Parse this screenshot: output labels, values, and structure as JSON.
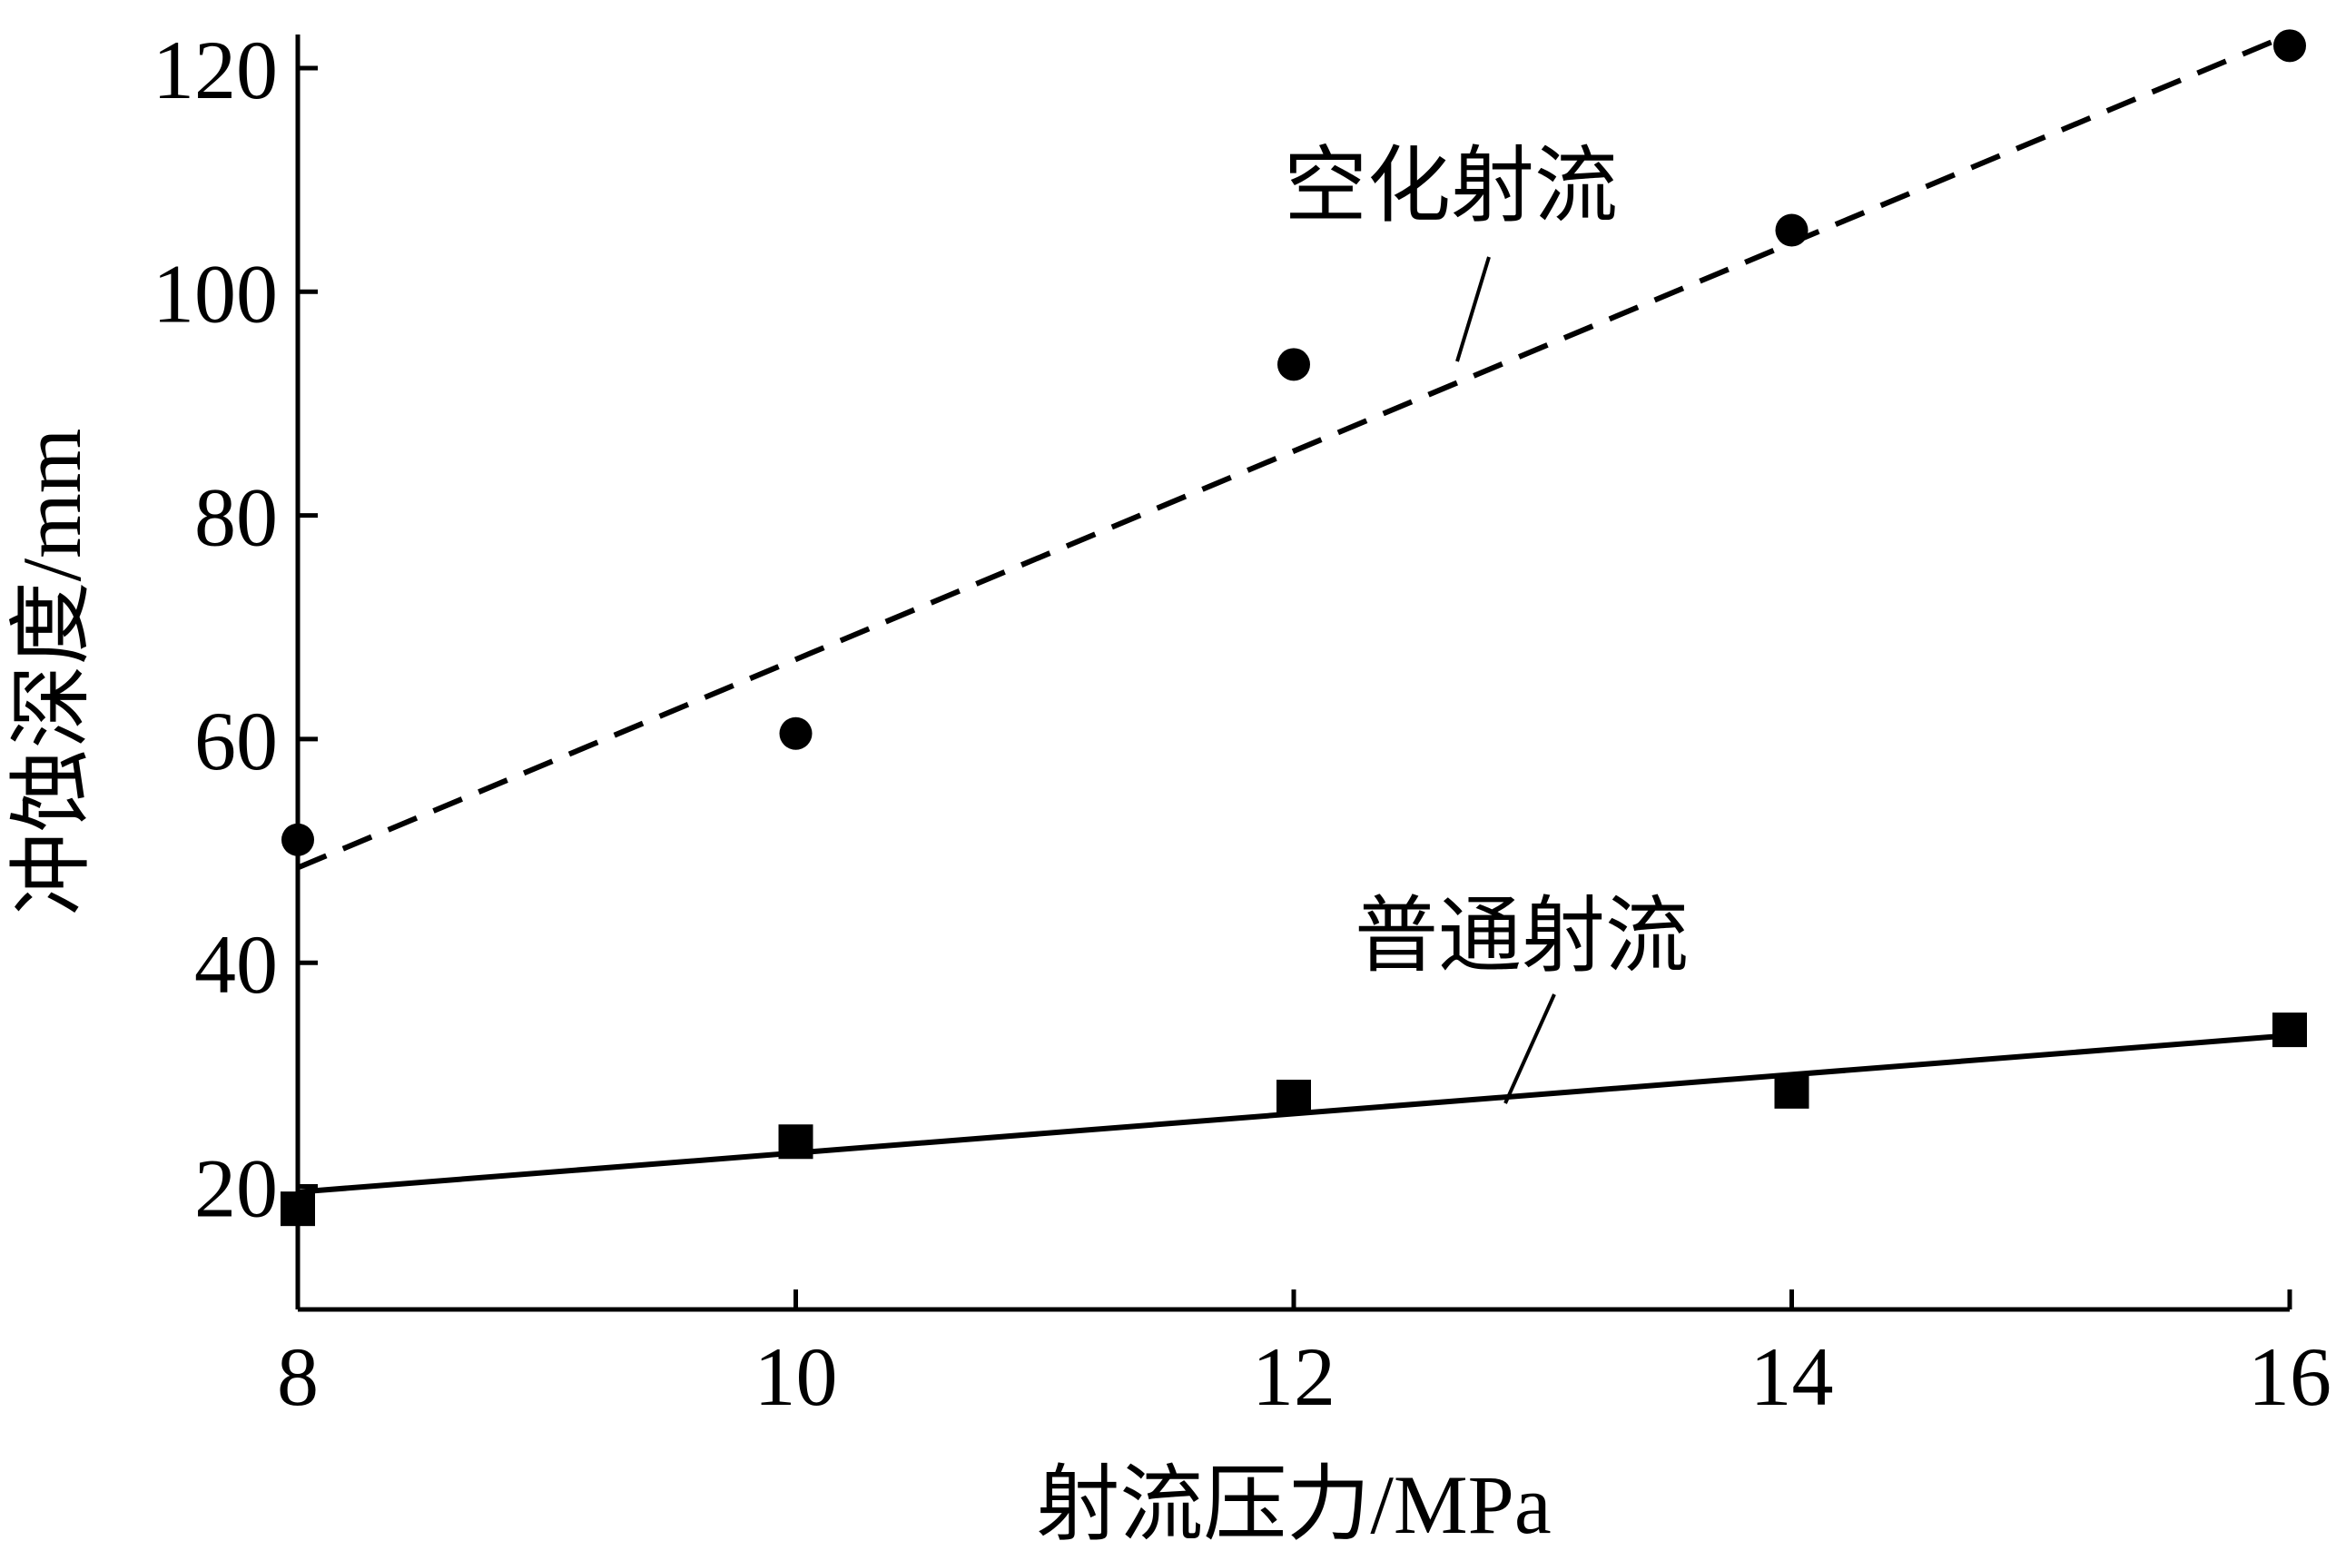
{
  "chart_data": {
    "type": "scatter",
    "xlabel": "射流压力/MPa",
    "ylabel": "冲蚀深度/mm",
    "xlim": [
      8,
      16
    ],
    "ylim": [
      9,
      123
    ],
    "xticks": [
      8,
      10,
      12,
      14,
      16
    ],
    "yticks": [
      20,
      40,
      60,
      80,
      100,
      120
    ],
    "grid": false,
    "series": [
      {
        "name": "空化射流",
        "marker": "circle",
        "line_style": "dashed",
        "color": "#000000",
        "x": [
          8,
          10,
          12,
          14,
          16
        ],
        "y": [
          51,
          60.5,
          93.5,
          105.5,
          122
        ],
        "fit": {
          "x": [
            8,
            16
          ],
          "y": [
            48.5,
            123
          ]
        }
      },
      {
        "name": "普通射流",
        "marker": "square",
        "line_style": "solid",
        "color": "#000000",
        "x": [
          8,
          10,
          12,
          14,
          16
        ],
        "y": [
          18,
          24,
          28,
          28.5,
          34
        ],
        "fit": {
          "x": [
            8,
            16
          ],
          "y": [
            19.5,
            33.5
          ]
        }
      }
    ]
  }
}
